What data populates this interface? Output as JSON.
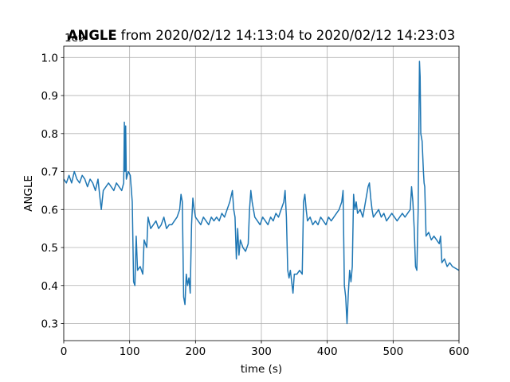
{
  "chart_data": {
    "type": "line",
    "title_bold": "ANGLE",
    "title": "from 2020/02/12 14:13:04 to 2020/02/12 14:23:03",
    "offset_text": "1e9",
    "xlabel": "time (s)",
    "ylabel": "ANGLE",
    "color": "#1f77b4",
    "grid": true,
    "xlim": [
      0,
      600
    ],
    "xticks": [
      0,
      100,
      200,
      300,
      400,
      500,
      600
    ],
    "ylim": [
      0.255,
      1.03
    ],
    "yticks": [
      0.3,
      0.4,
      0.5,
      0.6,
      0.7,
      0.8,
      0.9,
      {
        "value": 1,
        "label": "1.0"
      }
    ],
    "x": [
      0,
      4,
      8,
      12,
      16,
      20,
      24,
      28,
      32,
      36,
      40,
      44,
      48,
      52,
      55,
      57,
      60,
      64,
      68,
      72,
      76,
      80,
      84,
      88,
      91,
      92,
      93,
      94,
      95,
      98,
      101,
      104,
      106,
      108,
      110,
      112,
      116,
      120,
      122,
      126,
      128,
      132,
      136,
      140,
      144,
      148,
      152,
      156,
      160,
      164,
      168,
      172,
      176,
      178,
      180,
      182,
      184,
      186,
      188,
      190,
      192,
      194,
      196,
      198,
      200,
      204,
      208,
      212,
      216,
      220,
      224,
      228,
      232,
      236,
      240,
      244,
      248,
      252,
      256,
      258,
      260,
      262,
      264,
      266,
      268,
      272,
      276,
      280,
      282,
      284,
      286,
      290,
      294,
      298,
      302,
      306,
      310,
      314,
      318,
      322,
      326,
      330,
      334,
      336,
      338,
      340,
      342,
      344,
      348,
      350,
      354,
      358,
      362,
      364,
      366,
      368,
      370,
      374,
      378,
      382,
      386,
      390,
      394,
      398,
      402,
      406,
      410,
      414,
      418,
      422,
      424,
      426,
      428,
      430,
      432,
      434,
      436,
      438,
      440,
      442,
      444,
      446,
      450,
      454,
      458,
      462,
      464,
      466,
      468,
      470,
      474,
      478,
      482,
      486,
      490,
      494,
      498,
      502,
      506,
      510,
      514,
      518,
      522,
      526,
      528,
      530,
      532,
      534,
      536,
      538,
      540,
      541,
      542,
      544,
      546,
      547,
      548,
      550,
      554,
      558,
      562,
      566,
      570,
      572,
      574,
      578,
      582,
      586,
      590,
      600
    ],
    "values": [
      0.68,
      0.67,
      0.69,
      0.67,
      0.7,
      0.68,
      0.67,
      0.69,
      0.68,
      0.66,
      0.68,
      0.67,
      0.65,
      0.68,
      0.63,
      0.6,
      0.65,
      0.66,
      0.67,
      0.66,
      0.65,
      0.67,
      0.66,
      0.65,
      0.67,
      0.83,
      0.7,
      0.82,
      0.68,
      0.7,
      0.69,
      0.62,
      0.41,
      0.4,
      0.53,
      0.44,
      0.45,
      0.43,
      0.52,
      0.5,
      0.58,
      0.55,
      0.56,
      0.57,
      0.55,
      0.56,
      0.58,
      0.55,
      0.56,
      0.56,
      0.57,
      0.58,
      0.6,
      0.64,
      0.62,
      0.37,
      0.35,
      0.43,
      0.4,
      0.42,
      0.38,
      0.56,
      0.63,
      0.6,
      0.58,
      0.57,
      0.56,
      0.58,
      0.57,
      0.56,
      0.58,
      0.57,
      0.58,
      0.57,
      0.59,
      0.58,
      0.6,
      0.62,
      0.65,
      0.6,
      0.58,
      0.47,
      0.55,
      0.48,
      0.52,
      0.5,
      0.49,
      0.51,
      0.6,
      0.65,
      0.62,
      0.58,
      0.57,
      0.56,
      0.58,
      0.57,
      0.56,
      0.58,
      0.57,
      0.59,
      0.58,
      0.6,
      0.62,
      0.65,
      0.58,
      0.44,
      0.42,
      0.44,
      0.38,
      0.43,
      0.43,
      0.44,
      0.43,
      0.62,
      0.64,
      0.6,
      0.57,
      0.58,
      0.56,
      0.57,
      0.56,
      0.58,
      0.57,
      0.56,
      0.58,
      0.57,
      0.58,
      0.59,
      0.6,
      0.62,
      0.65,
      0.4,
      0.37,
      0.3,
      0.38,
      0.44,
      0.41,
      0.45,
      0.64,
      0.6,
      0.62,
      0.59,
      0.6,
      0.58,
      0.62,
      0.66,
      0.67,
      0.63,
      0.6,
      0.58,
      0.59,
      0.6,
      0.58,
      0.59,
      0.57,
      0.58,
      0.59,
      0.58,
      0.57,
      0.58,
      0.59,
      0.58,
      0.59,
      0.6,
      0.66,
      0.62,
      0.55,
      0.45,
      0.44,
      0.6,
      0.99,
      0.95,
      0.8,
      0.78,
      0.7,
      0.67,
      0.66,
      0.53,
      0.54,
      0.52,
      0.53,
      0.52,
      0.51,
      0.53,
      0.46,
      0.47,
      0.45,
      0.46,
      0.45,
      0.44
    ]
  }
}
